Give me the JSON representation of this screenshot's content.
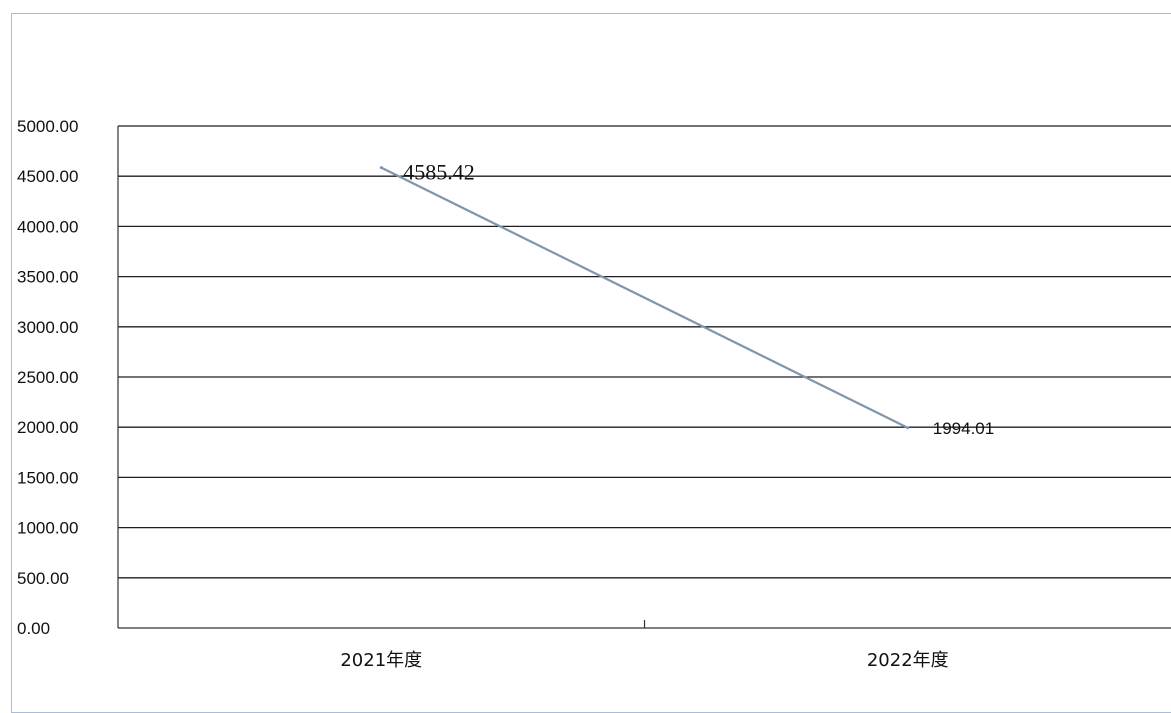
{
  "chart_data": {
    "type": "line",
    "title": "",
    "xlabel": "",
    "ylabel": "",
    "categories": [
      "2021年度",
      "2022年度"
    ],
    "series": [
      {
        "values": [
          4585.42,
          1994.01
        ],
        "data_labels": [
          "4585.42",
          "1994.01"
        ]
      }
    ],
    "y_ticks": [
      "5000.00",
      "4500.00",
      "4000.00",
      "3500.00",
      "3000.00",
      "2500.00",
      "2000.00",
      "1500.00",
      "1000.00",
      "500.00",
      "0.00"
    ],
    "ylim": [
      0,
      5000
    ],
    "grid": true,
    "legend": "none",
    "line_color": "#7f96ae"
  }
}
